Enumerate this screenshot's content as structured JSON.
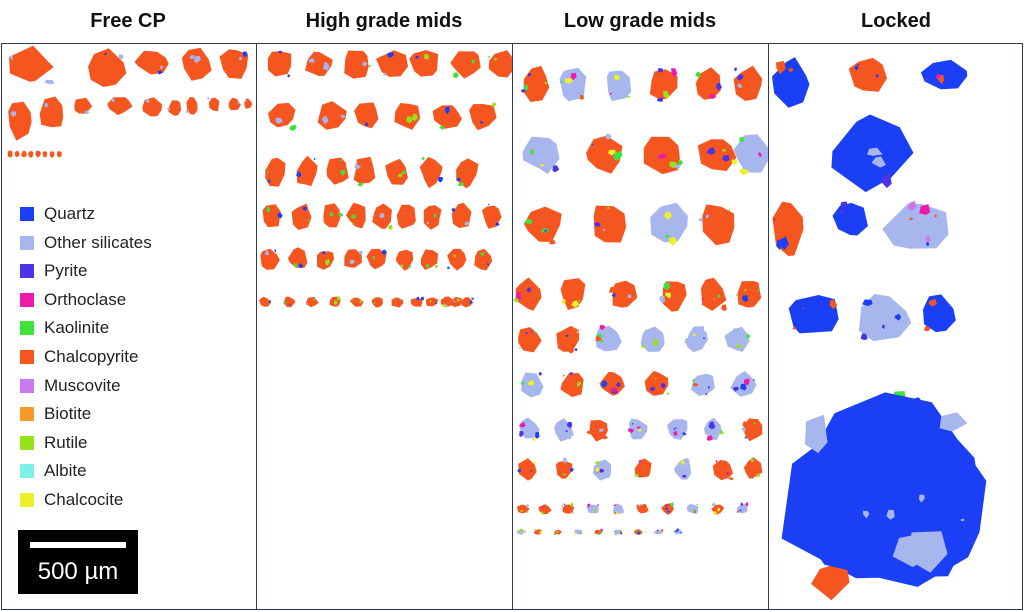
{
  "columns": [
    {
      "title": "Free CP"
    },
    {
      "title": "High grade mids"
    },
    {
      "title": "Low grade mids"
    },
    {
      "title": "Locked"
    }
  ],
  "legend": [
    {
      "label": "Quartz",
      "color": "#1a3ff5"
    },
    {
      "label": "Other silicates",
      "color": "#a8b6ee"
    },
    {
      "label": "Pyrite",
      "color": "#4b33e6"
    },
    {
      "label": "Orthoclase",
      "color": "#ee1aa9"
    },
    {
      "label": "Kaolinite",
      "color": "#3fe23c"
    },
    {
      "label": "Chalcopyrite",
      "color": "#f5561f"
    },
    {
      "label": "Muscovite",
      "color": "#c978ee"
    },
    {
      "label": "Biotite",
      "color": "#f79a25"
    },
    {
      "label": "Rutile",
      "color": "#97e21a"
    },
    {
      "label": "Albite",
      "color": "#7ff1e4"
    },
    {
      "label": "Chalcocite",
      "color": "#eaf02a"
    }
  ],
  "scale_bar": {
    "label": "500 µm"
  }
}
